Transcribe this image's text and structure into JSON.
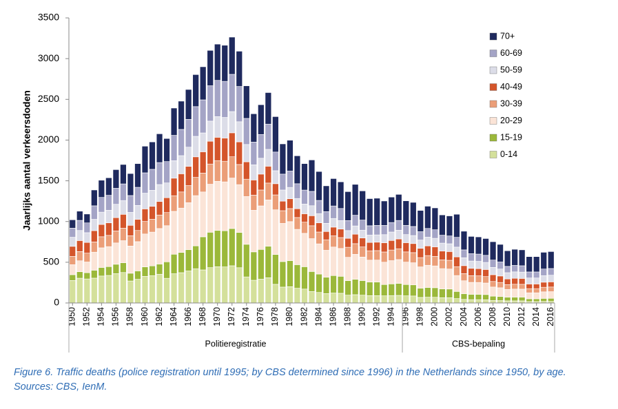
{
  "chart_data": {
    "type": "stacked-bar",
    "y_label": "Jaarlijks aantal verkeersdoden",
    "caption": [
      "Figure 6. Traffic deaths (police registration until 1995; by CBS determined since 1996) in the Netherlands since 1950, by age.",
      "Sources: CBS, IenM."
    ],
    "x": [
      1950,
      1951,
      1952,
      1953,
      1954,
      1955,
      1956,
      1957,
      1958,
      1959,
      1960,
      1961,
      1962,
      1963,
      1964,
      1965,
      1966,
      1967,
      1968,
      1969,
      1970,
      1971,
      1972,
      1973,
      1974,
      1975,
      1976,
      1977,
      1978,
      1979,
      1980,
      1981,
      1982,
      1983,
      1984,
      1985,
      1986,
      1987,
      1988,
      1989,
      1990,
      1991,
      1992,
      1993,
      1994,
      1995,
      1996,
      1997,
      1998,
      1999,
      2000,
      2001,
      2002,
      2003,
      2004,
      2005,
      2006,
      2007,
      2008,
      2009,
      2010,
      2011,
      2012,
      2013,
      2014,
      2015,
      2016
    ],
    "xlim": [
      1949.5,
      2016.5
    ],
    "xticks": [
      1950,
      1952,
      1954,
      1956,
      1958,
      1960,
      1962,
      1964,
      1966,
      1968,
      1970,
      1972,
      1974,
      1976,
      1978,
      1980,
      1982,
      1984,
      1986,
      1988,
      1990,
      1992,
      1994,
      1996,
      1998,
      2000,
      2002,
      2004,
      2006,
      2008,
      2010,
      2012,
      2014,
      2016
    ],
    "ylim": [
      0,
      3500
    ],
    "yticks": [
      0,
      500,
      1000,
      1500,
      2000,
      2500,
      3000,
      3500
    ],
    "periods": [
      {
        "label": "Politieregistratie",
        "start": 1950,
        "end": 1995
      },
      {
        "label": "CBS-bepaling",
        "start": 1996,
        "end": 2016
      }
    ],
    "series": [
      {
        "name": "0-14",
        "color": "#d4e09b",
        "values": [
          276,
          304,
          295,
          305,
          331,
          338,
          360,
          374,
          270,
          291,
          327,
          336,
          353,
          303,
          359,
          372,
          393,
          421,
          406,
          434,
          445,
          443,
          457,
          433,
          320,
          279,
          292,
          310,
          229,
          195,
          200,
          181,
          171,
          140,
          129,
          115,
          122,
          119,
          96,
          102,
          96,
          90,
          90,
          88,
          91,
          93,
          88,
          86,
          68,
          71,
          70,
          65,
          64,
          54,
          44,
          41,
          41,
          40,
          30,
          29,
          26,
          26,
          26,
          17,
          17,
          19,
          19
        ]
      },
      {
        "name": "15-19",
        "color": "#9bb83a",
        "values": [
          71,
          79,
          77,
          97,
          105,
          108,
          115,
          119,
          95,
          103,
          116,
          119,
          125,
          202,
          239,
          248,
          262,
          280,
          406,
          434,
          445,
          443,
          457,
          433,
          400,
          348,
          365,
          387,
          366,
          313,
          320,
          289,
          274,
          246,
          226,
          201,
          214,
          208,
          178,
          189,
          179,
          167,
          167,
          138,
          143,
          147,
          138,
          136,
          114,
          119,
          117,
          108,
          107,
          87,
          70,
          65,
          65,
          63,
          53,
          50,
          45,
          46,
          46,
          34,
          34,
          37,
          38
        ]
      },
      {
        "name": "20-29",
        "color": "#fbe4d7",
        "values": [
          123,
          135,
          131,
          222,
          241,
          246,
          262,
          272,
          334,
          359,
          404,
          415,
          436,
          444,
          527,
          545,
          576,
          617,
          551,
          590,
          604,
          601,
          620,
          587,
          587,
          511,
          535,
          568,
          549,
          469,
          479,
          434,
          410,
          404,
          371,
          331,
          351,
          342,
          287,
          306,
          289,
          269,
          270,
          275,
          286,
          293,
          276,
          272,
          261,
          273,
          268,
          249,
          246,
          196,
          159,
          147,
          146,
          142,
          113,
          108,
          96,
          99,
          98,
          74,
          74,
          81,
          82
        ]
      },
      {
        "name": "30-39",
        "color": "#eb9e78",
        "values": [
          102,
          113,
          109,
          125,
          136,
          138,
          147,
          153,
          127,
          137,
          154,
          158,
          166,
          161,
          192,
          198,
          210,
          224,
          232,
          248,
          254,
          253,
          261,
          247,
          213,
          186,
          195,
          207,
          183,
          156,
          160,
          145,
          137,
          158,
          145,
          129,
          137,
          134,
          123,
          131,
          124,
          115,
          116,
          125,
          130,
          133,
          125,
          124,
          114,
          119,
          117,
          108,
          107,
          109,
          88,
          82,
          81,
          79,
          68,
          65,
          58,
          59,
          59,
          51,
          51,
          56,
          57
        ]
      },
      {
        "name": "40-49",
        "color": "#d4552b",
        "values": [
          123,
          135,
          131,
          139,
          151,
          154,
          164,
          170,
          127,
          137,
          154,
          158,
          166,
          182,
          215,
          223,
          236,
          252,
          261,
          279,
          286,
          285,
          294,
          278,
          213,
          186,
          195,
          207,
          137,
          117,
          120,
          108,
          103,
          123,
          113,
          101,
          107,
          104,
          109,
          116,
          110,
          102,
          103,
          113,
          117,
          120,
          113,
          111,
          114,
          119,
          117,
          108,
          107,
          120,
          97,
          90,
          89,
          87,
          83,
          79,
          70,
          73,
          72,
          57,
          57,
          62,
          63
        ]
      },
      {
        "name": "50-59",
        "color": "#dcdde8",
        "values": [
          112,
          124,
          120,
          139,
          151,
          154,
          164,
          170,
          159,
          171,
          193,
          198,
          208,
          182,
          215,
          223,
          236,
          252,
          232,
          248,
          254,
          253,
          261,
          247,
          213,
          186,
          195,
          207,
          160,
          137,
          140,
          126,
          120,
          123,
          113,
          101,
          107,
          104,
          96,
          102,
          96,
          90,
          90,
          100,
          104,
          107,
          100,
          99,
          102,
          107,
          105,
          97,
          96,
          120,
          97,
          90,
          89,
          87,
          90,
          86,
          77,
          79,
          78,
          74,
          74,
          81,
          82
        ]
      },
      {
        "name": "60-69",
        "color": "#a4a4c6",
        "values": [
          112,
          124,
          120,
          166,
          181,
          184,
          196,
          204,
          207,
          222,
          250,
          257,
          270,
          262,
          311,
          322,
          341,
          365,
          406,
          434,
          445,
          443,
          457,
          433,
          320,
          279,
          292,
          310,
          229,
          195,
          200,
          181,
          171,
          176,
          162,
          144,
          153,
          149,
          123,
          131,
          124,
          115,
          116,
          113,
          117,
          120,
          113,
          111,
          102,
          107,
          105,
          97,
          96,
          120,
          97,
          90,
          89,
          87,
          90,
          86,
          77,
          79,
          78,
          74,
          74,
          81,
          82
        ]
      },
      {
        "name": "70+",
        "color": "#1f2a5e",
        "values": [
          102,
          113,
          109,
          194,
          211,
          215,
          229,
          238,
          270,
          291,
          327,
          336,
          353,
          283,
          335,
          347,
          367,
          393,
          406,
          434,
          445,
          443,
          457,
          433,
          400,
          348,
          365,
          387,
          435,
          371,
          379,
          343,
          325,
          386,
          355,
          316,
          336,
          327,
          355,
          379,
          358,
          333,
          334,
          300,
          312,
          320,
          301,
          296,
          261,
          273,
          268,
          249,
          246,
          283,
          229,
          212,
          211,
          206,
          225,
          216,
          192,
          198,
          195,
          188,
          188,
          205,
          208
        ]
      }
    ]
  }
}
